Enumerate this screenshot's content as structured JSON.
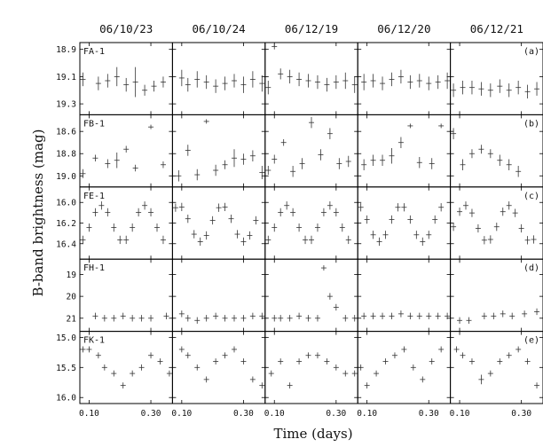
{
  "chart_data": {
    "type": "scatter",
    "xlabel": "Time (days)",
    "ylabel": "B-band brightness (mag)",
    "xlim": [
      0.07,
      0.37
    ],
    "x_ticks": [
      0.1,
      0.3
    ],
    "x_tick_labels": [
      "0.10",
      "0.30"
    ],
    "columns": [
      "06/10/23",
      "06/10/24",
      "06/12/19",
      "06/12/20",
      "06/12/21"
    ],
    "rows": [
      {
        "object": "FA-1",
        "tag": "(a)",
        "ylim": [
          18.85,
          19.38
        ],
        "y_inverted": true,
        "y_ticks": [
          18.9,
          19.1,
          19.3
        ],
        "y_tick_labels": [
          "18.9",
          "19.1",
          "19.3"
        ],
        "panels": [
          {
            "x": [
              0.08,
              0.13,
              0.16,
              0.19,
              0.22,
              0.25,
              0.28,
              0.31,
              0.34
            ],
            "y": [
              19.12,
              19.15,
              19.13,
              19.1,
              19.16,
              19.14,
              19.2,
              19.17,
              19.14
            ],
            "err": [
              0.05,
              0.05,
              0.05,
              0.07,
              0.05,
              0.11,
              0.04,
              0.04,
              0.04
            ]
          },
          {
            "x": [
              0.1,
              0.12,
              0.15,
              0.18,
              0.21,
              0.24,
              0.27,
              0.3,
              0.33,
              0.36
            ],
            "y": [
              19.11,
              19.16,
              19.12,
              19.14,
              19.17,
              19.15,
              19.13,
              19.16,
              19.12,
              19.15
            ],
            "err": [
              0.06,
              0.05,
              0.06,
              0.05,
              0.05,
              0.05,
              0.05,
              0.06,
              0.06,
              0.06
            ]
          },
          {
            "x": [
              0.08,
              0.1,
              0.12,
              0.15,
              0.18,
              0.21,
              0.24,
              0.27,
              0.3,
              0.33,
              0.36
            ],
            "y": [
              19.18,
              18.88,
              19.08,
              19.1,
              19.12,
              19.13,
              19.14,
              19.16,
              19.14,
              19.13,
              19.16
            ],
            "err": [
              0.05,
              0.02,
              0.04,
              0.05,
              0.05,
              0.05,
              0.05,
              0.05,
              0.05,
              0.06,
              0.06
            ]
          },
          {
            "x": [
              0.09,
              0.12,
              0.15,
              0.18,
              0.21,
              0.24,
              0.27,
              0.3,
              0.33,
              0.36
            ],
            "y": [
              19.14,
              19.13,
              19.15,
              19.12,
              19.1,
              19.14,
              19.13,
              19.15,
              19.14,
              19.13
            ],
            "err": [
              0.06,
              0.05,
              0.05,
              0.05,
              0.05,
              0.05,
              0.05,
              0.05,
              0.05,
              0.06
            ]
          },
          {
            "x": [
              0.08,
              0.11,
              0.14,
              0.17,
              0.2,
              0.23,
              0.26,
              0.29,
              0.32,
              0.35
            ],
            "y": [
              19.2,
              19.18,
              19.18,
              19.19,
              19.2,
              19.17,
              19.2,
              19.18,
              19.21,
              19.19
            ],
            "err": [
              0.05,
              0.05,
              0.05,
              0.05,
              0.05,
              0.05,
              0.05,
              0.05,
              0.05,
              0.05
            ]
          }
        ]
      },
      {
        "object": "FB-1",
        "tag": "(b)",
        "ylim": [
          18.45,
          19.1
        ],
        "y_inverted": true,
        "y_ticks": [
          18.6,
          18.8,
          19.0
        ],
        "y_tick_labels": [
          "18.6",
          "18.8",
          "19.0"
        ],
        "panels": [
          {
            "x": [
              0.08,
              0.12,
              0.16,
              0.19,
              0.22,
              0.25,
              0.3,
              0.34
            ],
            "y": [
              18.98,
              18.84,
              18.89,
              18.86,
              18.76,
              18.93,
              18.56,
              18.9
            ],
            "err": [
              0.04,
              0.03,
              0.04,
              0.07,
              0.03,
              0.03,
              0.02,
              0.03
            ]
          },
          {
            "x": [
              0.09,
              0.12,
              0.15,
              0.18,
              0.21,
              0.24,
              0.27,
              0.3,
              0.33,
              0.36
            ],
            "y": [
              19.0,
              18.77,
              18.99,
              18.51,
              18.95,
              18.9,
              18.84,
              18.85,
              18.82,
              18.97
            ],
            "err": [
              0.05,
              0.05,
              0.05,
              0.02,
              0.05,
              0.04,
              0.08,
              0.05,
              0.05,
              0.06
            ]
          },
          {
            "x": [
              0.08,
              0.1,
              0.13,
              0.16,
              0.19,
              0.22,
              0.25,
              0.28,
              0.31,
              0.34
            ],
            "y": [
              18.95,
              18.85,
              18.7,
              18.96,
              18.89,
              18.52,
              18.81,
              18.62,
              18.89,
              18.87
            ],
            "err": [
              0.04,
              0.04,
              0.03,
              0.05,
              0.05,
              0.05,
              0.05,
              0.05,
              0.05,
              0.05
            ]
          },
          {
            "x": [
              0.09,
              0.12,
              0.15,
              0.18,
              0.21,
              0.24,
              0.27,
              0.31,
              0.34
            ],
            "y": [
              18.9,
              18.86,
              18.86,
              18.82,
              18.7,
              18.55,
              18.88,
              18.89,
              18.55
            ],
            "err": [
              0.05,
              0.05,
              0.05,
              0.07,
              0.05,
              0.02,
              0.05,
              0.05,
              0.02
            ]
          },
          {
            "x": [
              0.08,
              0.11,
              0.14,
              0.17,
              0.2,
              0.23,
              0.26,
              0.29
            ],
            "y": [
              18.62,
              18.9,
              18.8,
              18.76,
              18.8,
              18.86,
              18.9,
              18.96
            ],
            "err": [
              0.05,
              0.05,
              0.04,
              0.04,
              0.04,
              0.05,
              0.05,
              0.05
            ]
          }
        ]
      },
      {
        "object": "FE-1",
        "tag": "(c)",
        "ylim": [
          15.85,
          16.55
        ],
        "y_inverted": true,
        "y_ticks": [
          16.0,
          16.2,
          16.4
        ],
        "y_tick_labels": [
          "16.0",
          "16.2",
          "16.4"
        ],
        "lightcurve": {
          "mean": 16.205,
          "amp": 0.175,
          "period": 0.14
        },
        "panels": [
          {
            "phase": 0.0,
            "x_start": 0.08,
            "x_step": 0.02,
            "n": 14
          },
          {
            "phase": 0.35,
            "x_start": 0.08,
            "x_step": 0.02,
            "n": 14
          },
          {
            "phase": 0.0,
            "x_start": 0.08,
            "x_step": 0.02,
            "n": 14
          },
          {
            "phase": 0.5,
            "x_start": 0.08,
            "x_step": 0.02,
            "n": 14
          },
          {
            "phase": 0.15,
            "x_start": 0.08,
            "x_step": 0.02,
            "n": 14
          }
        ]
      },
      {
        "object": "FH-1",
        "tag": "(d)",
        "ylim": [
          18.3,
          21.6
        ],
        "y_inverted": true,
        "y_ticks": [
          19,
          20,
          21
        ],
        "y_tick_labels": [
          "19",
          "20",
          "21"
        ],
        "panels": [
          {
            "x": [
              0.12,
              0.15,
              0.18,
              0.21,
              0.24,
              0.27,
              0.3,
              0.35
            ],
            "y": [
              20.9,
              21.0,
              21.0,
              20.9,
              21.0,
              21.0,
              21.0,
              20.9
            ],
            "err": [
              0.15,
              0.15,
              0.15,
              0.15,
              0.15,
              0.15,
              0.15,
              0.15
            ]
          },
          {
            "x": [
              0.1,
              0.12,
              0.15,
              0.18,
              0.21,
              0.24,
              0.27,
              0.3,
              0.33,
              0.36
            ],
            "y": [
              20.8,
              21.0,
              21.1,
              21.0,
              20.9,
              21.0,
              21.0,
              21.0,
              20.9,
              20.9
            ],
            "err": [
              0.15,
              0.15,
              0.15,
              0.15,
              0.15,
              0.15,
              0.15,
              0.15,
              0.15,
              0.15
            ]
          },
          {
            "x": [
              0.1,
              0.12,
              0.15,
              0.18,
              0.21,
              0.24,
              0.26,
              0.28,
              0.3,
              0.33,
              0.36
            ],
            "y": [
              21.0,
              21.0,
              21.0,
              20.9,
              21.0,
              21.0,
              18.7,
              20.0,
              20.5,
              21.0,
              21.0
            ],
            "err": [
              0.15,
              0.15,
              0.15,
              0.15,
              0.15,
              0.15,
              0.12,
              0.15,
              0.15,
              0.15,
              0.15
            ]
          },
          {
            "x": [
              0.09,
              0.12,
              0.15,
              0.18,
              0.21,
              0.24,
              0.27,
              0.3,
              0.33,
              0.36
            ],
            "y": [
              20.9,
              20.9,
              20.9,
              20.9,
              20.8,
              20.9,
              20.9,
              20.9,
              20.9,
              20.9
            ],
            "err": [
              0.15,
              0.15,
              0.15,
              0.15,
              0.15,
              0.15,
              0.15,
              0.15,
              0.15,
              0.15
            ]
          },
          {
            "x": [
              0.1,
              0.13,
              0.18,
              0.21,
              0.24,
              0.27,
              0.31,
              0.35
            ],
            "y": [
              21.1,
              21.1,
              20.9,
              20.9,
              20.8,
              20.9,
              20.8,
              20.7
            ],
            "err": [
              0.15,
              0.15,
              0.15,
              0.15,
              0.15,
              0.15,
              0.15,
              0.15
            ]
          }
        ]
      },
      {
        "object": "FK-1",
        "tag": "(e)",
        "ylim": [
          14.9,
          16.1
        ],
        "y_inverted": true,
        "y_ticks": [
          15.0,
          15.5,
          16.0
        ],
        "y_tick_labels": [
          "15.0",
          "15.5",
          "16.0"
        ],
        "panels": [
          {
            "x": [
              0.08,
              0.1,
              0.13,
              0.15,
              0.18,
              0.21,
              0.24,
              0.27,
              0.3,
              0.33,
              0.36
            ],
            "y": [
              15.2,
              15.2,
              15.3,
              15.5,
              15.6,
              15.8,
              15.6,
              15.5,
              15.3,
              15.4,
              15.6
            ],
            "err": [
              0.05,
              0.05,
              0.05,
              0.05,
              0.05,
              0.05,
              0.05,
              0.05,
              0.05,
              0.05,
              0.05
            ]
          },
          {
            "x": [
              0.1,
              0.12,
              0.15,
              0.18,
              0.21,
              0.24,
              0.27,
              0.3,
              0.33,
              0.36
            ],
            "y": [
              15.2,
              15.3,
              15.5,
              15.7,
              15.4,
              15.3,
              15.2,
              15.4,
              15.7,
              15.8
            ],
            "err": [
              0.05,
              0.05,
              0.05,
              0.05,
              0.05,
              0.05,
              0.05,
              0.05,
              0.05,
              0.05
            ]
          },
          {
            "x": [
              0.09,
              0.12,
              0.15,
              0.18,
              0.21,
              0.24,
              0.27,
              0.3,
              0.33,
              0.36
            ],
            "y": [
              15.6,
              15.4,
              15.8,
              15.4,
              15.3,
              15.3,
              15.4,
              15.5,
              15.6,
              15.6
            ],
            "err": [
              0.05,
              0.05,
              0.05,
              0.05,
              0.05,
              0.05,
              0.05,
              0.05,
              0.05,
              0.05
            ]
          },
          {
            "x": [
              0.08,
              0.1,
              0.13,
              0.16,
              0.19,
              0.22,
              0.25,
              0.28,
              0.31,
              0.34
            ],
            "y": [
              15.5,
              15.8,
              15.6,
              15.4,
              15.3,
              15.2,
              15.5,
              15.7,
              15.4,
              15.2
            ],
            "err": [
              0.05,
              0.05,
              0.05,
              0.05,
              0.05,
              0.05,
              0.05,
              0.05,
              0.05,
              0.05
            ]
          },
          {
            "x": [
              0.09,
              0.11,
              0.14,
              0.17,
              0.2,
              0.23,
              0.26,
              0.29,
              0.32,
              0.35
            ],
            "y": [
              15.2,
              15.3,
              15.4,
              15.7,
              15.6,
              15.4,
              15.3,
              15.2,
              15.4,
              15.8
            ],
            "err": [
              0.05,
              0.05,
              0.05,
              0.08,
              0.05,
              0.05,
              0.05,
              0.05,
              0.05,
              0.05
            ]
          }
        ]
      }
    ]
  }
}
